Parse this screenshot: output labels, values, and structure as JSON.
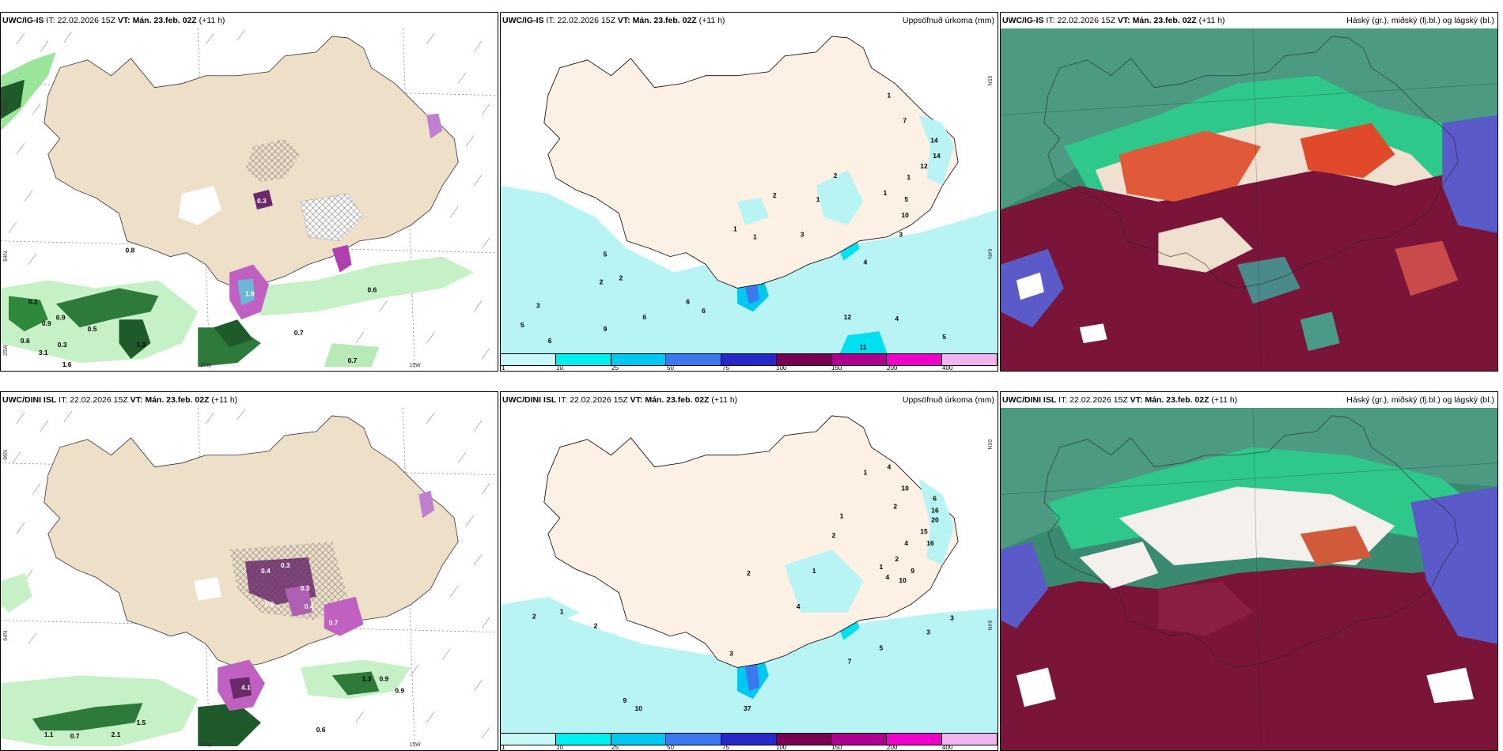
{
  "rows": [
    {
      "model": "UWC/IG-IS",
      "it_label": "IT:",
      "it": "22.02.2026 15Z",
      "vt_label": "VT:",
      "vt": "Mán. 23.feb. 02Z",
      "lead": "(+11 h)"
    },
    {
      "model": "UWC/DINI ISL",
      "it_label": "IT:",
      "it": "22.02.2026 15Z",
      "vt_label": "VT:",
      "vt": "Mán. 23.feb. 02Z",
      "lead": "(+11 h)"
    }
  ],
  "titles": {
    "precip": "Uppsöfnuð úrkoma (mm)",
    "cloud": "Háský (gr.), miðský (fj.bl.) og lágský (bl.)"
  },
  "coords": {
    "lat66": "66N",
    "lat65": "65N",
    "lat64": "64N",
    "lon20": "20W",
    "lon15": "15W",
    "lon25": "25W"
  },
  "colorbar": {
    "ticks": [
      "1",
      "10",
      "25",
      "50",
      "75",
      "100",
      "150",
      "200",
      "400"
    ],
    "colors": [
      "#c8f8f8",
      "#00f0f0",
      "#00c8f0",
      "#3c78f0",
      "#2828c8",
      "#780050",
      "#b00090",
      "#f000c8",
      "#f0b4f0"
    ]
  },
  "wind_labels": {
    "r0": [
      "0.8",
      "1.9",
      "0.3",
      "0.6",
      "0.9",
      "0.7",
      "0.7",
      "0.2",
      "0.9",
      "0.6",
      "3.1",
      "1.6",
      "0.5",
      "0.3",
      "1.3"
    ],
    "r1": [
      "0.4",
      "0.3",
      "0.3",
      "0.6",
      "0.4",
      "0.7",
      "1.3",
      "0.9",
      "0.9",
      "4.1",
      "1.1",
      "0.7",
      "2.1",
      "1.5",
      "0.6"
    ]
  },
  "precip_labels": {
    "r0": [
      "1",
      "7",
      "14",
      "14",
      "12",
      "1",
      "2",
      "5",
      "10",
      "3",
      "1",
      "2",
      "1",
      "1",
      "3",
      "4",
      "5",
      "2",
      "2",
      "6",
      "6",
      "3",
      "5",
      "9",
      "6",
      "6",
      "12",
      "4",
      "11",
      "5",
      "1"
    ],
    "r1": [
      "1",
      "4",
      "10",
      "6",
      "2",
      "16",
      "20",
      "15",
      "16",
      "1",
      "2",
      "4",
      "2",
      "1",
      "9",
      "10",
      "4",
      "1",
      "2",
      "3",
      "3",
      "5",
      "4",
      "3",
      "2",
      "1",
      "2",
      "9",
      "10",
      "37",
      "7"
    ]
  }
}
